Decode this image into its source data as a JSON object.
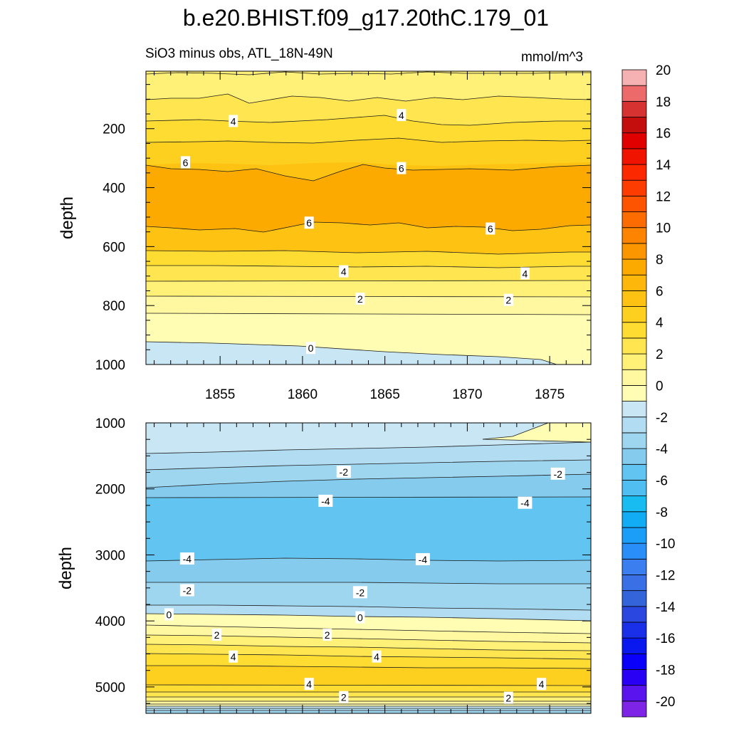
{
  "chart_data": {
    "type": "contour",
    "title": "b.e20.BHIST.f09_g17.20thC.179_01",
    "subtitle_left": "SiO3 minus obs, ATL_18N-49N",
    "subtitle_right": "mmol/m^3",
    "xlabel": "",
    "xlim": [
      1850.5,
      1877.5
    ],
    "x_ticks": [
      1855,
      1860,
      1865,
      1870,
      1875
    ],
    "x_tick_labels": [
      "1855",
      "1860",
      "1865",
      "1870",
      "1875"
    ],
    "panels": [
      {
        "name": "upper",
        "ylabel": "depth",
        "ylim": [
          5,
          1000
        ],
        "y_ticks": [
          200,
          400,
          600,
          800,
          1000
        ],
        "y_tick_labels": [
          "200",
          "400",
          "600",
          "800",
          "1000"
        ],
        "contour_labels": [
          {
            "text": "4",
            "x": 1855.8,
            "y": 175
          },
          {
            "text": "4",
            "x": 1866.0,
            "y": 155
          },
          {
            "text": "6",
            "x": 1852.9,
            "y": 315
          },
          {
            "text": "6",
            "x": 1866.0,
            "y": 335
          },
          {
            "text": "6",
            "x": 1860.4,
            "y": 520
          },
          {
            "text": "6",
            "x": 1871.4,
            "y": 540
          },
          {
            "text": "4",
            "x": 1862.5,
            "y": 685
          },
          {
            "text": "4",
            "x": 1873.5,
            "y": 692
          },
          {
            "text": "2",
            "x": 1863.5,
            "y": 778
          },
          {
            "text": "2",
            "x": 1872.5,
            "y": 782
          },
          {
            "text": "0",
            "x": 1860.5,
            "y": 945
          }
        ]
      },
      {
        "name": "lower",
        "ylabel": "depth",
        "ylim": [
          1000,
          5400
        ],
        "y_ticks": [
          1000,
          2000,
          3000,
          4000,
          5000
        ],
        "y_tick_labels": [
          "1000",
          "2000",
          "3000",
          "4000",
          "5000"
        ],
        "contour_labels": [
          {
            "text": "-2",
            "x": 1862.5,
            "y": 1745
          },
          {
            "text": "-2",
            "x": 1875.5,
            "y": 1775
          },
          {
            "text": "-4",
            "x": 1861.4,
            "y": 2185
          },
          {
            "text": "-4",
            "x": 1873.5,
            "y": 2215
          },
          {
            "text": "-4",
            "x": 1853.0,
            "y": 3060
          },
          {
            "text": "-4",
            "x": 1867.3,
            "y": 3070
          },
          {
            "text": "-2",
            "x": 1853.0,
            "y": 3540
          },
          {
            "text": "-2",
            "x": 1863.5,
            "y": 3570
          },
          {
            "text": "0",
            "x": 1851.9,
            "y": 3905
          },
          {
            "text": "0",
            "x": 1863.5,
            "y": 3950
          },
          {
            "text": "2",
            "x": 1854.8,
            "y": 4215
          },
          {
            "text": "2",
            "x": 1861.5,
            "y": 4215
          },
          {
            "text": "4",
            "x": 1855.8,
            "y": 4545
          },
          {
            "text": "4",
            "x": 1864.5,
            "y": 4545
          },
          {
            "text": "4",
            "x": 1860.4,
            "y": 4960
          },
          {
            "text": "4",
            "x": 1874.5,
            "y": 4960
          },
          {
            "text": "2",
            "x": 1862.5,
            "y": 5160
          },
          {
            "text": "2",
            "x": 1872.5,
            "y": 5170
          }
        ]
      }
    ],
    "colorbar": {
      "levels": [
        -20,
        -19,
        -18,
        -17,
        -16,
        -15,
        -14,
        -13,
        -12,
        -11,
        -10,
        -9,
        -8,
        -7,
        -6,
        -5,
        -4,
        -3,
        -2,
        -1,
        0,
        1,
        2,
        3,
        4,
        5,
        6,
        7,
        8,
        9,
        10,
        11,
        12,
        13,
        14,
        15,
        16,
        17,
        18,
        19,
        20
      ],
      "tick_labels": [
        "-20",
        "-18",
        "-16",
        "-14",
        "-12",
        "-10",
        "-8",
        "-6",
        "-4",
        "-2",
        "0",
        "2",
        "4",
        "6",
        "8",
        "10",
        "12",
        "14",
        "16",
        "18",
        "20"
      ],
      "colors": [
        "#7d24e6",
        "#5a14ee",
        "#2a00f4",
        "#0a00fa",
        "#0a18f0",
        "#1a30e8",
        "#2a48e0",
        "#3464da",
        "#3a70e6",
        "#3a7ef0",
        "#2a8ef8",
        "#1a9ef8",
        "#12acf4",
        "#18bcf0",
        "#50bef0",
        "#62c4f0",
        "#84cbee",
        "#9ed6f0",
        "#b2dcf2",
        "#c8e6f4",
        "#fffcb4",
        "#fff8a0",
        "#fff078",
        "#ffe650",
        "#ffdc32",
        "#fdd020",
        "#fdc212",
        "#fdb60a",
        "#fdaa00",
        "#fc9600",
        "#fc8400",
        "#fc6c00",
        "#fc5400",
        "#fc3c00",
        "#fc2800",
        "#f01400",
        "#e00000",
        "#c40e0e",
        "#d63232",
        "#ec6a6a",
        "#f6b2b2"
      ]
    }
  }
}
